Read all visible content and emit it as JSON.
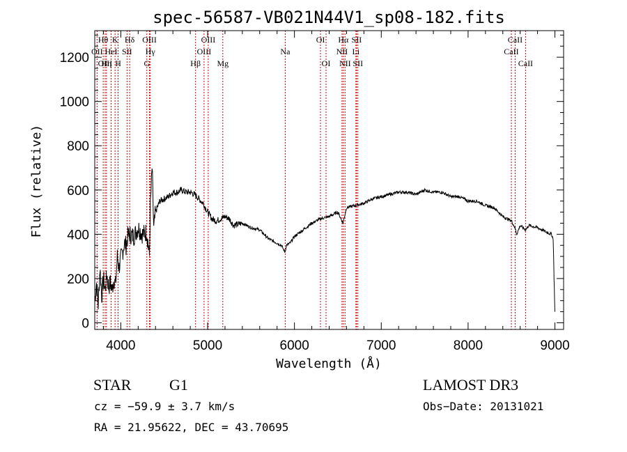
{
  "chart_data": {
    "type": "line",
    "title": "spec-56587-VB021N44V1_sp08-182.fits",
    "xlabel": "Wavelength (Å)",
    "ylabel": "Flux (relative)",
    "xlim": [
      3700,
      9100
    ],
    "ylim": [
      -30,
      1320
    ],
    "grid": false,
    "xticks": [
      4000,
      5000,
      6000,
      7000,
      8000,
      9000
    ],
    "yticks": [
      0,
      200,
      400,
      600,
      800,
      1000,
      1200
    ],
    "series": [
      {
        "name": "spectrum",
        "x": [
          3700,
          3720,
          3740,
          3760,
          3780,
          3800,
          3820,
          3840,
          3860,
          3880,
          3900,
          3920,
          3940,
          3960,
          3980,
          4000,
          4020,
          4040,
          4060,
          4080,
          4100,
          4150,
          4200,
          4250,
          4300,
          4330,
          4340,
          4360,
          4380,
          4400,
          4450,
          4500,
          4550,
          4600,
          4650,
          4700,
          4750,
          4800,
          4850,
          4900,
          4950,
          5000,
          5050,
          5100,
          5150,
          5200,
          5250,
          5300,
          5400,
          5500,
          5600,
          5700,
          5800,
          5850,
          5890,
          5910,
          5950,
          6000,
          6100,
          6200,
          6300,
          6400,
          6500,
          6560,
          6600,
          6700,
          6800,
          6900,
          7000,
          7100,
          7200,
          7300,
          7400,
          7500,
          7600,
          7700,
          7800,
          7900,
          8000,
          8100,
          8200,
          8300,
          8400,
          8500,
          8540,
          8560,
          8600,
          8660,
          8700,
          8800,
          8900,
          8960,
          8980,
          8990,
          9000
        ],
        "y": [
          100,
          180,
          80,
          250,
          120,
          200,
          150,
          220,
          160,
          180,
          150,
          200,
          170,
          300,
          250,
          290,
          320,
          360,
          350,
          390,
          400,
          390,
          430,
          400,
          410,
          300,
          520,
          700,
          420,
          500,
          550,
          560,
          570,
          590,
          590,
          600,
          590,
          590,
          580,
          560,
          540,
          500,
          470,
          460,
          470,
          480,
          470,
          440,
          450,
          430,
          420,
          380,
          360,
          350,
          320,
          350,
          360,
          390,
          420,
          450,
          470,
          480,
          500,
          450,
          520,
          530,
          540,
          560,
          570,
          580,
          590,
          590,
          580,
          600,
          590,
          590,
          570,
          570,
          550,
          550,
          530,
          520,
          480,
          460,
          430,
          400,
          440,
          420,
          440,
          430,
          410,
          400,
          380,
          200,
          50
        ]
      }
    ],
    "spectral_lines": [
      {
        "label": "OII",
        "row": 2,
        "x": 3727
      },
      {
        "label": "Hθ",
        "row": 1,
        "x": 3797
      },
      {
        "label": "OIII",
        "row": 3,
        "x": 3820
      },
      {
        "label": "Hη",
        "row": 3,
        "x": 3835
      },
      {
        "label": "HeI",
        "row": 2,
        "x": 3889
      },
      {
        "label": "K",
        "row": 1,
        "x": 3934
      },
      {
        "label": "H",
        "row": 3,
        "x": 3969
      },
      {
        "label": "SII",
        "row": 2,
        "x": 4072
      },
      {
        "label": "Hδ",
        "row": 1,
        "x": 4102
      },
      {
        "label": "G",
        "row": 3,
        "x": 4300
      },
      {
        "label": "OIII",
        "row": 1,
        "x": 4330
      },
      {
        "label": "Hγ",
        "row": 2,
        "x": 4340
      },
      {
        "label": "Hβ",
        "row": 3,
        "x": 4861
      },
      {
        "label": "OIII",
        "row": 2,
        "x": 4959
      },
      {
        "label": "OIII",
        "row": 1,
        "x": 5007
      },
      {
        "label": "Mg",
        "row": 3,
        "x": 5175
      },
      {
        "label": "Na",
        "row": 2,
        "x": 5894
      },
      {
        "label": "OI",
        "row": 1,
        "x": 6300
      },
      {
        "label": "OI",
        "row": 3,
        "x": 6364
      },
      {
        "label": "NII",
        "row": 2,
        "x": 6548
      },
      {
        "label": "Hα",
        "row": 1,
        "x": 6563
      },
      {
        "label": "NII",
        "row": 3,
        "x": 6583
      },
      {
        "label": "Li",
        "row": 2,
        "x": 6708
      },
      {
        "label": "SII",
        "row": 1,
        "x": 6716
      },
      {
        "label": "SII",
        "row": 3,
        "x": 6731
      },
      {
        "label": "CaII",
        "row": 2,
        "x": 8498
      },
      {
        "label": "CaII",
        "row": 1,
        "x": 8542
      },
      {
        "label": "CaII",
        "row": 3,
        "x": 8662
      }
    ],
    "line_color": "#000000",
    "marker_color": "#cc0000"
  },
  "info": {
    "object_class": "STAR",
    "subclass": "G1",
    "survey": "LAMOST DR3",
    "cz": "cz = −59.9 ± 3.7 km/s",
    "obs_date": "Obs−Date: 20131021",
    "coords": "RA =  21.95622, DEC =  43.70695"
  }
}
